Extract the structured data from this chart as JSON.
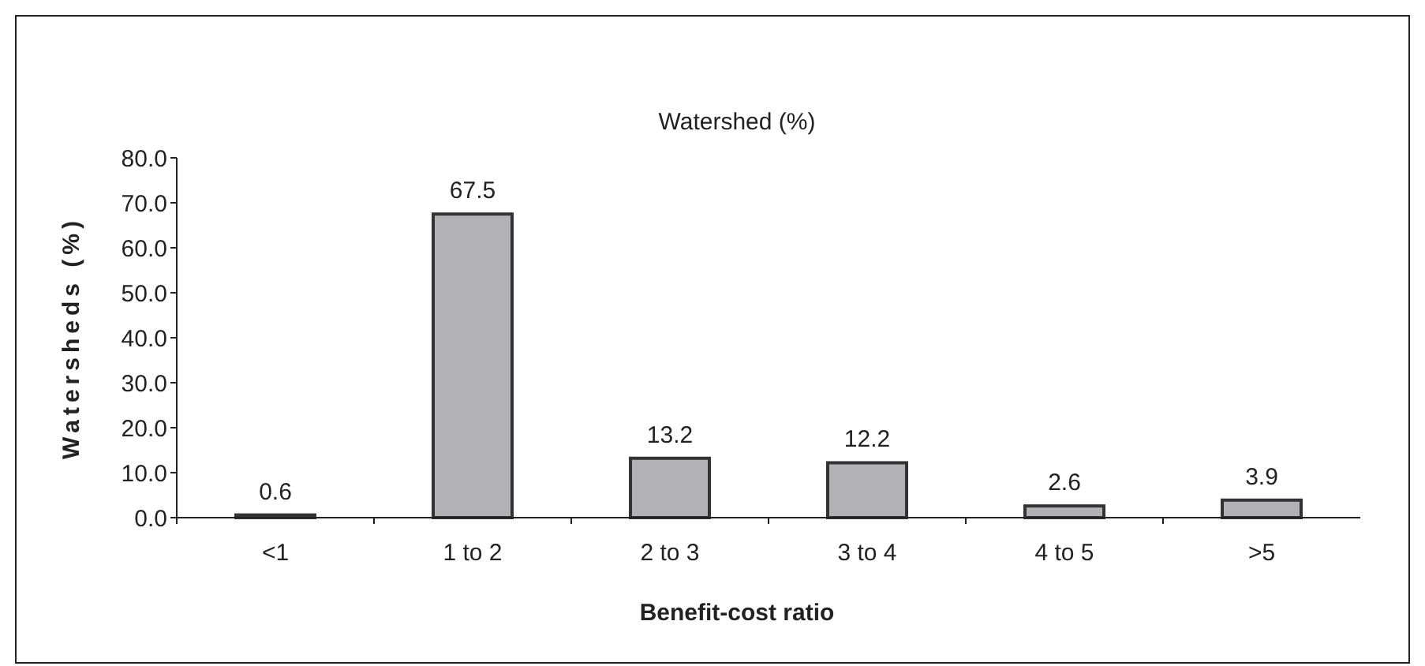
{
  "chart_data": {
    "type": "bar",
    "title": "Watershed (%)",
    "xlabel": "Benefit-cost ratio",
    "ylabel": "Watersheds (%)",
    "categories": [
      "<1",
      "1 to 2",
      "2 to 3",
      "3 to 4",
      "4 to 5",
      ">5"
    ],
    "values": [
      0.6,
      67.5,
      13.2,
      12.2,
      2.6,
      3.9
    ],
    "color": "#b2b2b6",
    "ylim": [
      0,
      80
    ],
    "yticks": [
      {
        "value": 0,
        "label": "0.0"
      },
      {
        "value": 10,
        "label": "10.0"
      },
      {
        "value": 20,
        "label": "20.0"
      },
      {
        "value": 30,
        "label": "30.0"
      },
      {
        "value": 40,
        "label": "40.0"
      },
      {
        "value": 50,
        "label": "50.0"
      },
      {
        "value": 60,
        "label": "60.0"
      },
      {
        "value": 70,
        "label": "70.0"
      },
      {
        "value": 80,
        "label": "80.0"
      }
    ],
    "data_labels": true,
    "grid": false
  }
}
